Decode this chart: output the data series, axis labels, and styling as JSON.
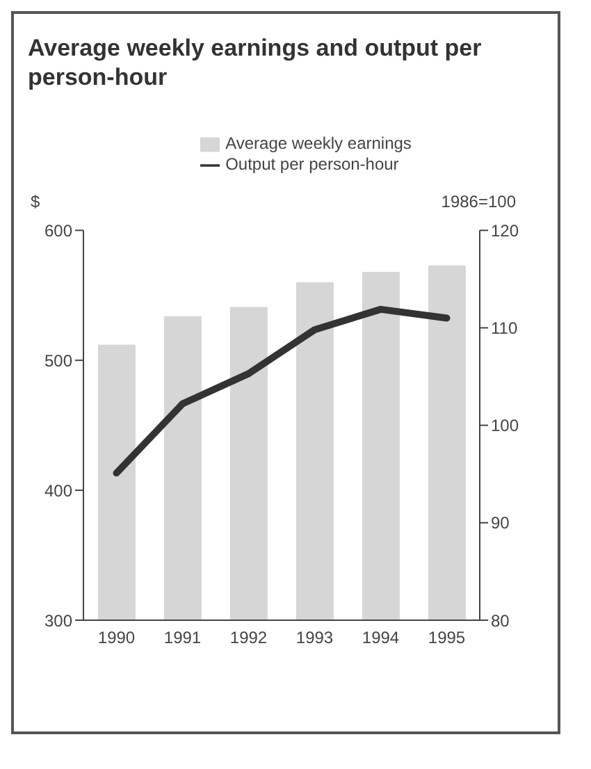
{
  "chart_data": {
    "type": "bar",
    "title": "Average weekly earnings and output per person-hour",
    "ylabel": "$",
    "y2label": "1986=100",
    "categories": [
      "1990",
      "1991",
      "1992",
      "1993",
      "1994",
      "1995"
    ],
    "series": [
      {
        "name": "Average weekly earnings",
        "color": "#d6d6d6",
        "values": [
          512,
          534,
          541,
          560,
          568,
          573
        ]
      },
      {
        "name": "Output per person-hour",
        "type": "line",
        "axis": "y2",
        "color": "#333333",
        "values": [
          95.1,
          102.2,
          105.3,
          109.8,
          111.9,
          111
        ]
      }
    ],
    "ylim": [
      300,
      600
    ],
    "yticks": [
      300,
      400,
      500,
      600
    ],
    "y2lim": [
      80,
      120
    ],
    "y2ticks": [
      80,
      90,
      100,
      110,
      120
    ],
    "legend": "top",
    "grid": false,
    "marker": "none"
  }
}
